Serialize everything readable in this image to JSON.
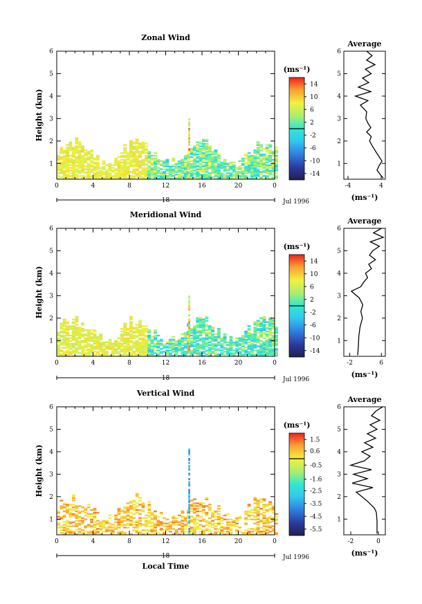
{
  "chart_data": [
    {
      "type": "heatmap",
      "title": "Zonal Wind",
      "ylabel": "Height (km)",
      "xlabel": "",
      "x_ticks": [
        "0",
        "4",
        "8",
        "12",
        "16",
        "20",
        "0"
      ],
      "y_ticks": [
        "1",
        "2",
        "3",
        "4",
        "5",
        "6"
      ],
      "xlim": [
        0,
        24
      ],
      "ylim": [
        0.3,
        6
      ],
      "colorbar_unit": "(ms⁻¹)",
      "colorbar_range": [
        -16,
        16
      ],
      "colorbar_ticks": [
        "14",
        "10",
        "6",
        "2",
        "-2",
        "-6",
        "-10",
        "-14"
      ],
      "date_day": "18",
      "date_label": "Jul 1996",
      "average_profile": {
        "title": "Average",
        "xlabel": "(ms⁻¹)",
        "x_ticks": [
          "-4",
          "4"
        ],
        "xlim": [
          -5,
          5
        ],
        "y_ticks": [
          "1",
          "2",
          "3",
          "4",
          "5",
          "6"
        ],
        "ylim": [
          0.3,
          6
        ],
        "points": [
          [
            4.5,
            0.35
          ],
          [
            3.8,
            0.5
          ],
          [
            3.0,
            0.7
          ],
          [
            3.5,
            0.9
          ],
          [
            4.2,
            1.1
          ],
          [
            3.5,
            1.3
          ],
          [
            2.8,
            1.5
          ],
          [
            1.8,
            1.8
          ],
          [
            1.2,
            2.0
          ],
          [
            1.6,
            2.2
          ],
          [
            0.5,
            2.4
          ],
          [
            1.5,
            2.6
          ],
          [
            0.8,
            2.8
          ],
          [
            0.3,
            3.0
          ],
          [
            0.5,
            3.3
          ],
          [
            -1.0,
            3.6
          ],
          [
            0.8,
            3.8
          ],
          [
            -2.2,
            4.0
          ],
          [
            1.5,
            4.2
          ],
          [
            -1.5,
            4.4
          ],
          [
            1.0,
            4.6
          ],
          [
            -0.5,
            4.8
          ],
          [
            1.6,
            5.0
          ],
          [
            0.2,
            5.2
          ],
          [
            2.5,
            5.4
          ],
          [
            0.5,
            5.6
          ],
          [
            1.8,
            5.8
          ],
          [
            0.5,
            6.0
          ]
        ]
      }
    },
    {
      "type": "heatmap",
      "title": "Meridional Wind",
      "ylabel": "Height (km)",
      "xlabel": "",
      "x_ticks": [
        "0",
        "4",
        "8",
        "12",
        "16",
        "20",
        "0"
      ],
      "y_ticks": [
        "1",
        "2",
        "3",
        "4",
        "5",
        "6"
      ],
      "xlim": [
        0,
        24
      ],
      "ylim": [
        0.3,
        6
      ],
      "colorbar_unit": "(ms⁻¹)",
      "colorbar_range": [
        -16,
        16
      ],
      "colorbar_ticks": [
        "14",
        "10",
        "6",
        "2",
        "-2",
        "-6",
        "-10",
        "-14"
      ],
      "date_day": "18",
      "date_label": "Jul 1996",
      "average_profile": {
        "title": "Average",
        "xlabel": "(ms⁻¹)",
        "x_ticks": [
          "-2",
          "6"
        ],
        "xlim": [
          -3.5,
          7
        ],
        "y_ticks": [
          "1",
          "2",
          "3",
          "4",
          "5",
          "6"
        ],
        "ylim": [
          0.3,
          6
        ],
        "points": [
          [
            0.0,
            0.35
          ],
          [
            0.2,
            0.8
          ],
          [
            0.3,
            1.2
          ],
          [
            0.6,
            1.6
          ],
          [
            1.2,
            2.0
          ],
          [
            0.8,
            2.3
          ],
          [
            1.3,
            2.6
          ],
          [
            0.4,
            2.9
          ],
          [
            -1.6,
            3.2
          ],
          [
            0.8,
            3.4
          ],
          [
            1.5,
            3.6
          ],
          [
            2.5,
            3.8
          ],
          [
            2.0,
            4.0
          ],
          [
            3.5,
            4.2
          ],
          [
            2.8,
            4.4
          ],
          [
            4.5,
            4.6
          ],
          [
            3.0,
            4.8
          ],
          [
            3.8,
            5.0
          ],
          [
            5.5,
            5.2
          ],
          [
            3.2,
            5.4
          ],
          [
            6.5,
            5.6
          ],
          [
            4.0,
            5.8
          ],
          [
            6.0,
            6.0
          ]
        ]
      }
    },
    {
      "type": "heatmap",
      "title": "Vertical Wind",
      "ylabel": "Height (km)",
      "xlabel": "Local Time",
      "x_ticks": [
        "0",
        "4",
        "8",
        "12",
        "16",
        "20",
        "0"
      ],
      "y_ticks": [
        "1",
        "2",
        "3",
        "4",
        "5",
        "6"
      ],
      "xlim": [
        0,
        24
      ],
      "ylim": [
        0.3,
        6
      ],
      "colorbar_unit": "(ms⁻¹)",
      "colorbar_range": [
        -6.0,
        2.0
      ],
      "colorbar_ticks": [
        "1.5",
        "0.6",
        "-0.5",
        "-1.6",
        "-2.5",
        "-3.5",
        "-4.5",
        "-5.5"
      ],
      "date_day": "18",
      "date_label": "Jul 1996",
      "average_profile": {
        "title": "Average",
        "xlabel": "(ms⁻¹)",
        "x_ticks": [
          "-2",
          "0"
        ],
        "xlim": [
          -2.5,
          0.5
        ],
        "y_ticks": [
          "1",
          "2",
          "3",
          "4",
          "5",
          "6"
        ],
        "ylim": [
          0.3,
          6
        ],
        "points": [
          [
            -0.1,
            0.35
          ],
          [
            -0.1,
            0.9
          ],
          [
            -0.15,
            1.3
          ],
          [
            -0.3,
            1.5
          ],
          [
            -0.8,
            1.8
          ],
          [
            -1.2,
            2.0
          ],
          [
            -1.6,
            2.2
          ],
          [
            -0.4,
            2.4
          ],
          [
            -1.9,
            2.6
          ],
          [
            -0.8,
            2.8
          ],
          [
            -1.8,
            3.0
          ],
          [
            -0.5,
            3.2
          ],
          [
            -2.0,
            3.4
          ],
          [
            -1.0,
            3.6
          ],
          [
            -0.6,
            3.8
          ],
          [
            -1.2,
            4.0
          ],
          [
            -0.4,
            4.2
          ],
          [
            -1.0,
            4.4
          ],
          [
            -0.2,
            4.6
          ],
          [
            -0.8,
            4.8
          ],
          [
            -0.1,
            5.0
          ],
          [
            -0.6,
            5.2
          ],
          [
            0.1,
            5.4
          ],
          [
            -0.5,
            5.6
          ],
          [
            -0.2,
            5.8
          ],
          [
            0.3,
            6.0
          ]
        ]
      }
    }
  ]
}
